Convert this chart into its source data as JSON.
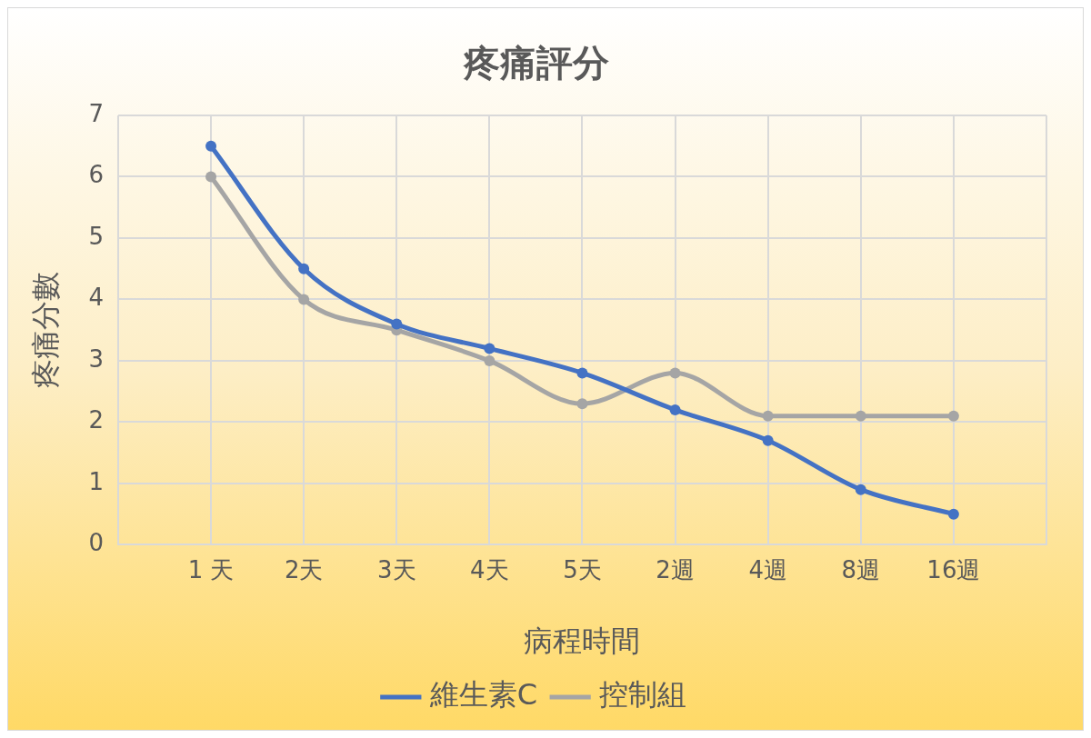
{
  "chart_data": {
    "type": "line",
    "title": "疼痛評分",
    "xlabel": "病程時間",
    "ylabel": "疼痛分數",
    "categories": [
      null,
      "1 天",
      "2天",
      "3天",
      "4天",
      "5天",
      "2週",
      "4週",
      "8週",
      "16週",
      null
    ],
    "series": [
      {
        "name": "維生素C",
        "color": "#4472c4",
        "values": [
          null,
          6.5,
          4.5,
          3.6,
          3.2,
          2.8,
          2.2,
          1.7,
          0.9,
          0.5,
          null
        ]
      },
      {
        "name": "控制組",
        "color": "#a5a5a5",
        "values": [
          null,
          6.0,
          4.0,
          3.5,
          3.0,
          2.3,
          2.8,
          2.1,
          2.1,
          2.1,
          null
        ]
      }
    ],
    "ylim": [
      0,
      7
    ],
    "yticks": [
      0,
      1,
      2,
      3,
      4,
      5,
      6,
      7
    ],
    "grid": true,
    "legend": "bottom",
    "marker": "circle",
    "line_style": "solid"
  }
}
